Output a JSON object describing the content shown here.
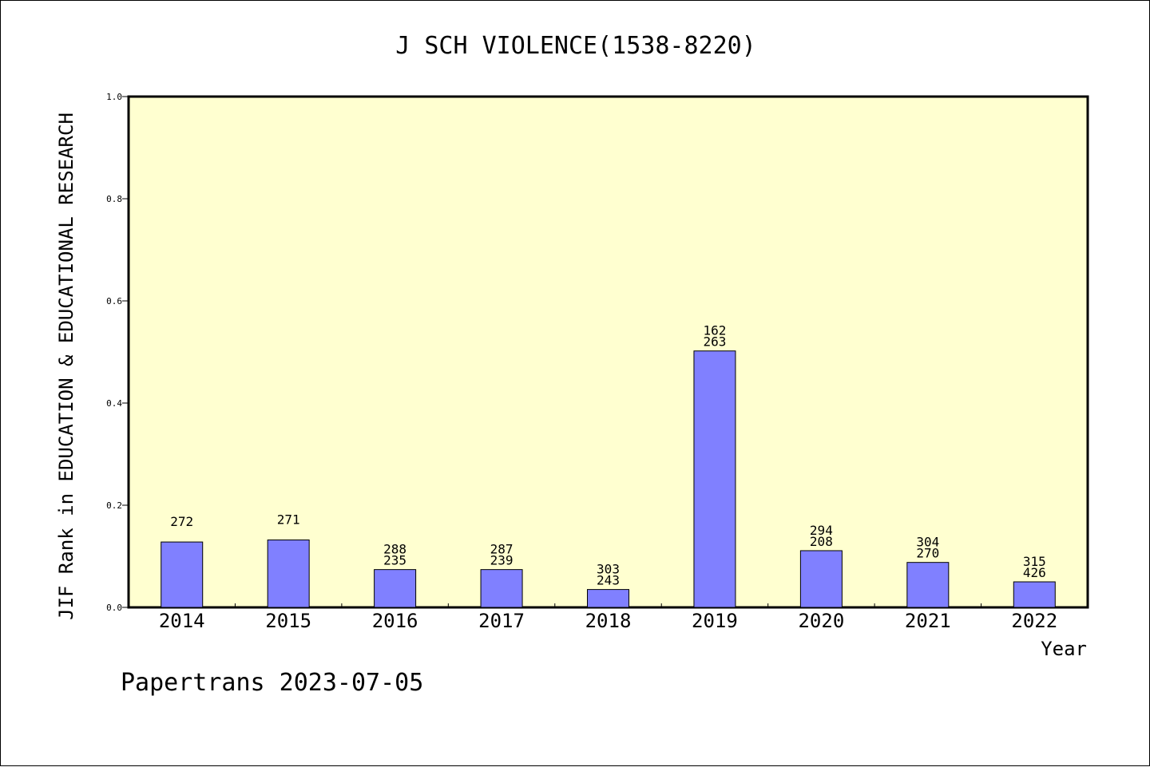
{
  "chart_data": {
    "type": "bar",
    "title": "J SCH VIOLENCE(1538-8220)",
    "xlabel": "Year",
    "ylabel": "JIF Rank in EDUCATION & EDUCATIONAL RESEARCH",
    "ylim": [
      0,
      1.0
    ],
    "yticks": [
      "0.0",
      "0.2",
      "0.4",
      "0.6",
      "0.8",
      "1.0"
    ],
    "categories": [
      "2014",
      "2015",
      "2016",
      "2017",
      "2018",
      "2019",
      "2020",
      "2021",
      "2022"
    ],
    "values": [
      0.128,
      0.132,
      0.074,
      0.074,
      0.035,
      0.502,
      0.111,
      0.088,
      0.05
    ],
    "bar_labels": [
      [
        "272"
      ],
      [
        "271"
      ],
      [
        "288",
        "235"
      ],
      [
        "287",
        "239"
      ],
      [
        "303",
        "243"
      ],
      [
        "162",
        "263"
      ],
      [
        "294",
        "208"
      ],
      [
        "304",
        "270"
      ],
      [
        "315",
        "426"
      ]
    ],
    "grid": false,
    "colors": {
      "plot_bg": "#ffffd0",
      "bar": "#8080ff",
      "axis": "#000000"
    }
  },
  "footer": "Papertrans 2023-07-05"
}
